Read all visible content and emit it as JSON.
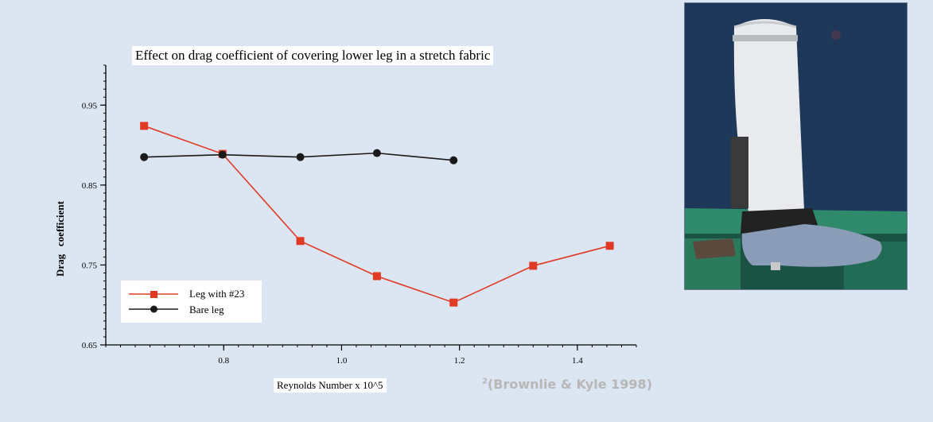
{
  "chart_data": {
    "type": "line",
    "title": "Effect on drag coefficient of covering lower leg in a stretch fabric",
    "xlabel": "Reynolds Number x 10^5",
    "ylabel": "Drag   coefficient",
    "xlim": [
      0.6,
      1.5
    ],
    "ylim": [
      0.65,
      1.0
    ],
    "x_ticks": [
      0.8,
      1.0,
      1.2,
      1.4
    ],
    "x_tick_labels": [
      "0.8",
      "1.0",
      "1.2",
      "1.4"
    ],
    "y_ticks": [
      0.65,
      0.75,
      0.85,
      0.95
    ],
    "y_tick_labels": [
      "0.65",
      "0.75",
      "0.85",
      "0.95"
    ],
    "grid": false,
    "legend_position": "bottom-left",
    "series": [
      {
        "name": "Leg with #23",
        "color": "#e03a24",
        "marker": "square",
        "x": [
          0.665,
          0.798,
          0.93,
          1.06,
          1.19,
          1.325,
          1.455
        ],
        "y": [
          0.924,
          0.889,
          0.78,
          0.736,
          0.703,
          0.749,
          0.774
        ]
      },
      {
        "name": "Bare leg",
        "color": "#1a1a1a",
        "marker": "circle",
        "x": [
          0.665,
          0.798,
          0.93,
          1.06,
          1.19
        ],
        "y": [
          0.885,
          0.888,
          0.885,
          0.89,
          0.881
        ]
      }
    ]
  },
  "citation": {
    "superscript": "2",
    "text": "(Brownlie & Kyle 1998)"
  },
  "colors": {
    "background": "#dce6f3",
    "photo_backdrop": "#1e3a5f"
  }
}
